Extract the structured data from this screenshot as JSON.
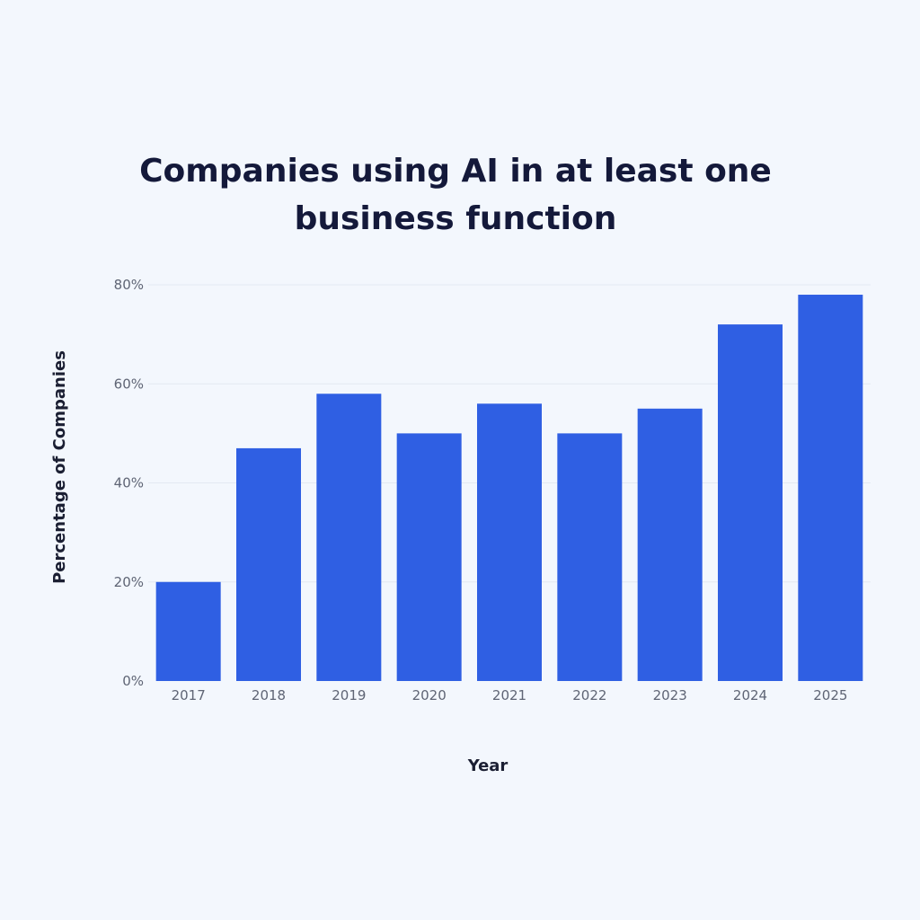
{
  "colors": {
    "background": "#f3f7fd",
    "bar": "#2f5fe3",
    "gridline": "#e3e9f2",
    "title": "#14193a",
    "tick_text": "#5f6575"
  },
  "chart_data": {
    "type": "bar",
    "title": "Companies using AI in at least one business function",
    "xlabel": "Year",
    "ylabel": "Percentage of Companies",
    "categories": [
      "2017",
      "2018",
      "2019",
      "2020",
      "2021",
      "2022",
      "2023",
      "2024",
      "2025"
    ],
    "values": [
      20,
      47,
      58,
      50,
      56,
      50,
      55,
      72,
      78
    ],
    "ylim": [
      0,
      80
    ],
    "yticks": [
      0,
      20,
      40,
      60,
      80
    ],
    "ytick_labels": [
      "0%",
      "20%",
      "40%",
      "60%",
      "80%"
    ],
    "grid": true,
    "legend": "none"
  }
}
